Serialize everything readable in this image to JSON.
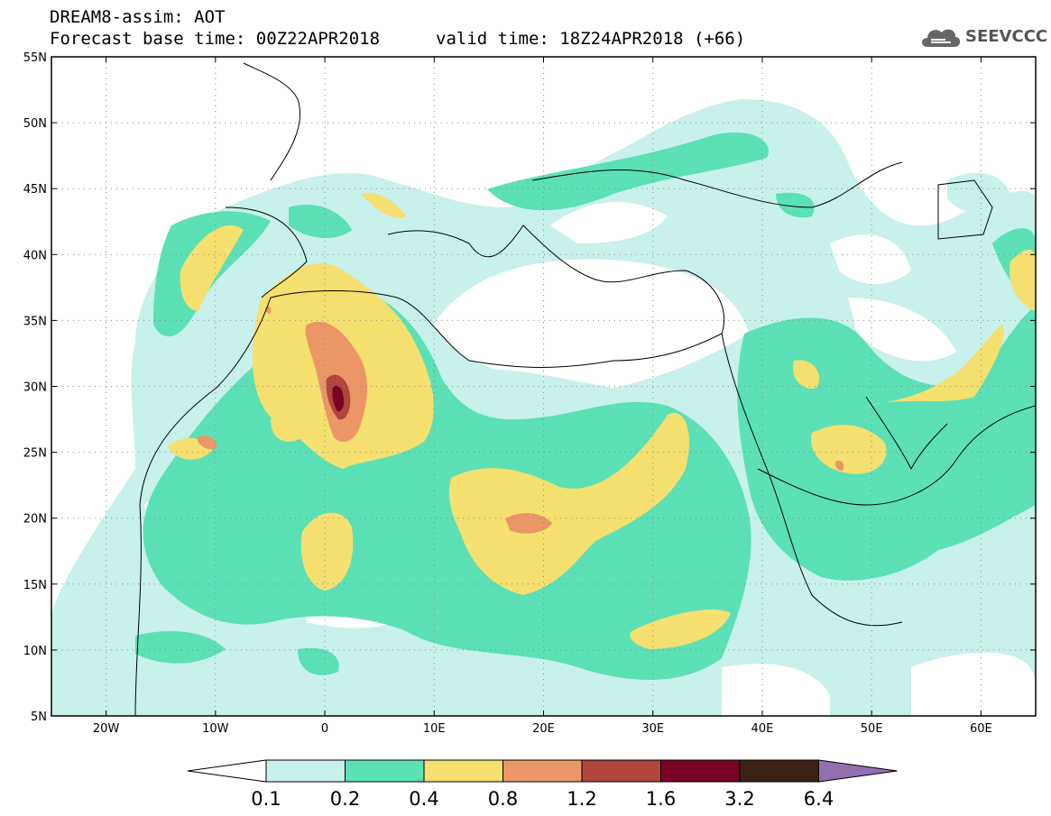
{
  "header": {
    "line1": "DREAM8-assim: AOT",
    "line2": "Forecast base time: 00Z22APR2018",
    "valid": "valid time: 18Z24APR2018 (+66)"
  },
  "logo": {
    "text": "SEEVCCC",
    "icon": "cloud-icon"
  },
  "map": {
    "lon_range": [
      -25,
      65
    ],
    "lat_range": [
      5,
      55
    ],
    "lat_ticks": [
      {
        "v": 55,
        "label": "55N"
      },
      {
        "v": 50,
        "label": "50N"
      },
      {
        "v": 45,
        "label": "45N"
      },
      {
        "v": 40,
        "label": "40N"
      },
      {
        "v": 35,
        "label": "35N"
      },
      {
        "v": 30,
        "label": "30N"
      },
      {
        "v": 25,
        "label": "25N"
      },
      {
        "v": 20,
        "label": "20N"
      },
      {
        "v": 15,
        "label": "15N"
      },
      {
        "v": 10,
        "label": "10N"
      },
      {
        "v": 5,
        "label": "5N"
      }
    ],
    "lon_ticks": [
      {
        "v": -20,
        "label": "20W"
      },
      {
        "v": -10,
        "label": "10W"
      },
      {
        "v": 0,
        "label": "0"
      },
      {
        "v": 10,
        "label": "10E"
      },
      {
        "v": 20,
        "label": "20E"
      },
      {
        "v": 30,
        "label": "30E"
      },
      {
        "v": 40,
        "label": "40E"
      },
      {
        "v": 50,
        "label": "50E"
      },
      {
        "v": 60,
        "label": "60E"
      }
    ],
    "grid": "dotted"
  },
  "colorbar": {
    "labels": [
      "0.1",
      "0.2",
      "0.4",
      "0.8",
      "1.2",
      "1.6",
      "3.2",
      "6.4"
    ],
    "low_extension_color": "#ffffff",
    "colors": [
      "#c7f1ea",
      "#5ce0b6",
      "#f5e070",
      "#eb9666",
      "#b0463d",
      "#7a0425",
      "#3a2214"
    ],
    "high_extension_color": "#9270b0"
  }
}
